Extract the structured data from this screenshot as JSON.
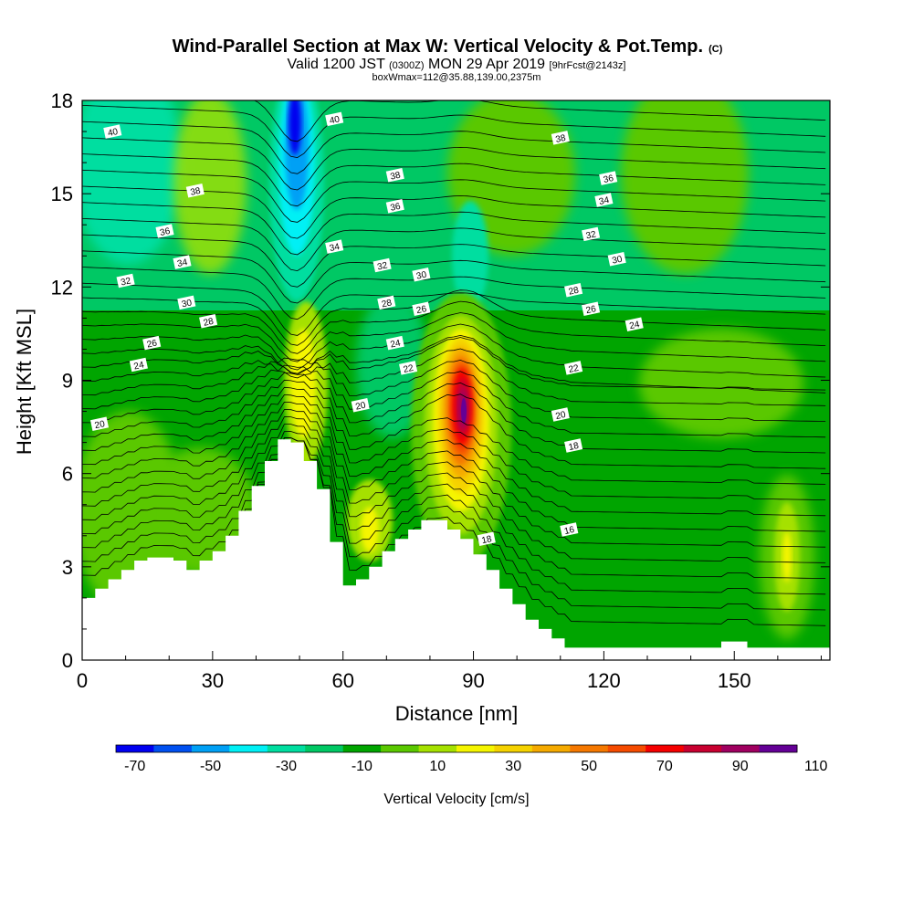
{
  "chart_data": {
    "type": "heatmap",
    "title": {
      "main": "Wind-Parallel Section at Max W: Vertical Velocity & Pot.Temp.",
      "mark": "(C)"
    },
    "subtitle": {
      "valid": "Valid 1200 JST",
      "zulu": "(0300Z)",
      "date": "MON 29 Apr 2019",
      "forecast": "[9hrFcst@2143z]"
    },
    "box_info": "boxWmax=112@35.88,139.00,2375m",
    "xlabel": "Distance [nm]",
    "ylabel": "Height [Kft MSL]",
    "xlim": [
      0,
      172
    ],
    "ylim": [
      0,
      18
    ],
    "x_ticks": [
      "0",
      "30",
      "60",
      "90",
      "120",
      "150"
    ],
    "y_ticks": [
      "0",
      "3",
      "6",
      "9",
      "12",
      "15",
      "18"
    ],
    "colorbar": {
      "label": "Vertical Velocity [cm/s]",
      "tick_labels": [
        "-70",
        "-50",
        "-30",
        "-10",
        "10",
        "30",
        "50",
        "70",
        "90",
        "110"
      ],
      "colors": [
        "#0000f0",
        "#0050f0",
        "#00a0f5",
        "#00f0f5",
        "#00dea0",
        "#00c864",
        "#00a500",
        "#5ac800",
        "#a5e100",
        "#f5f500",
        "#f5d200",
        "#f5aa00",
        "#f57800",
        "#f54b00",
        "#f50000",
        "#c80030",
        "#a00060",
        "#640096"
      ]
    },
    "terrain": {
      "x": [
        0,
        3,
        3,
        6,
        6,
        9,
        9,
        12,
        12,
        15,
        15,
        18,
        18,
        21,
        21,
        24,
        24,
        27,
        27,
        30,
        30,
        33,
        33,
        36,
        36,
        39,
        39,
        42,
        42,
        45,
        45,
        48,
        48,
        51,
        51,
        54,
        54,
        57,
        57,
        60,
        60,
        63,
        63,
        66,
        66,
        69,
        69,
        72,
        72,
        75,
        75,
        78,
        78,
        81,
        81,
        84,
        84,
        87,
        87,
        90,
        90,
        93,
        93,
        96,
        96,
        99,
        99,
        102,
        102,
        105,
        105,
        108,
        108,
        111,
        111,
        114,
        114,
        117,
        117,
        120,
        120,
        123,
        123,
        126,
        126,
        129,
        129,
        132,
        132,
        135,
        135,
        138,
        138,
        141,
        141,
        144,
        144,
        147,
        147,
        150,
        150,
        153,
        153,
        156,
        156,
        159,
        159,
        162,
        162,
        165,
        165,
        168,
        168,
        172
      ],
      "height": [
        2.0,
        2.0,
        2.3,
        2.3,
        2.6,
        2.6,
        2.9,
        2.9,
        3.2,
        3.2,
        3.3,
        3.3,
        3.3,
        3.3,
        3.2,
        3.2,
        2.9,
        2.9,
        3.2,
        3.2,
        3.5,
        3.5,
        4.0,
        4.0,
        4.8,
        4.8,
        5.6,
        5.6,
        6.4,
        6.4,
        7.1,
        7.1,
        7.0,
        7.0,
        6.4,
        6.4,
        5.5,
        5.5,
        3.8,
        3.8,
        2.4,
        2.4,
        2.6,
        2.6,
        3.0,
        3.0,
        3.5,
        3.5,
        3.9,
        3.9,
        4.2,
        4.2,
        4.5,
        4.5,
        4.5,
        4.5,
        4.2,
        4.2,
        3.9,
        3.9,
        3.4,
        3.4,
        2.9,
        2.9,
        2.3,
        2.3,
        1.8,
        1.8,
        1.3,
        1.3,
        1.0,
        1.0,
        0.7,
        0.7,
        0.4,
        0.4,
        0.4,
        0.4,
        0.4,
        0.4,
        0.4,
        0.4,
        0.4,
        0.4,
        0.4,
        0.4,
        0.4,
        0.4,
        0.4,
        0.4,
        0.4,
        0.4,
        0.4,
        0.4,
        0.4,
        0.4,
        0.4,
        0.4,
        0.6,
        0.6,
        0.6,
        0.6,
        0.4,
        0.4,
        0.4,
        0.4,
        0.4,
        0.4,
        0.4,
        0.4,
        0.4,
        0.4,
        0.4,
        0.4
      ]
    },
    "w_cells": [
      {
        "x": 3,
        "y": 9,
        "w": 15,
        "desc": "w",
        "value": 5
      },
      {
        "x": 49,
        "y": 16,
        "value": -70
      },
      {
        "x": 49,
        "y": 14,
        "value": -40
      },
      {
        "x": 49,
        "y": 12.5,
        "value": -20
      },
      {
        "x": 88,
        "y": 8,
        "value": 112
      },
      {
        "x": 50,
        "y": 9,
        "value": 35
      },
      {
        "x": 70,
        "y": 4.5,
        "value": 30
      },
      {
        "x": 163,
        "y": 3.5,
        "value": 30
      }
    ],
    "theta_labels": [
      {
        "value": "40",
        "x": 7,
        "y": 17
      },
      {
        "value": "40",
        "x": 58,
        "y": 17.4
      },
      {
        "value": "38",
        "x": 26,
        "y": 15.1
      },
      {
        "value": "38",
        "x": 72,
        "y": 15.6
      },
      {
        "value": "38",
        "x": 110,
        "y": 16.8
      },
      {
        "value": "36",
        "x": 19,
        "y": 13.8
      },
      {
        "value": "36",
        "x": 72,
        "y": 14.6
      },
      {
        "value": "36",
        "x": 121,
        "y": 15.5
      },
      {
        "value": "34",
        "x": 23,
        "y": 12.8
      },
      {
        "value": "34",
        "x": 58,
        "y": 13.3
      },
      {
        "value": "34",
        "x": 120,
        "y": 14.8
      },
      {
        "value": "32",
        "x": 10,
        "y": 12.2
      },
      {
        "value": "32",
        "x": 69,
        "y": 12.7
      },
      {
        "value": "32",
        "x": 117,
        "y": 13.7
      },
      {
        "value": "30",
        "x": 24,
        "y": 11.5
      },
      {
        "value": "30",
        "x": 78,
        "y": 12.4
      },
      {
        "value": "30",
        "x": 123,
        "y": 12.9
      },
      {
        "value": "28",
        "x": 29,
        "y": 10.9
      },
      {
        "value": "28",
        "x": 70,
        "y": 11.5
      },
      {
        "value": "28",
        "x": 113,
        "y": 11.9
      },
      {
        "value": "26",
        "x": 16,
        "y": 10.2
      },
      {
        "value": "26",
        "x": 78,
        "y": 11.3
      },
      {
        "value": "26",
        "x": 117,
        "y": 11.3
      },
      {
        "value": "24",
        "x": 13,
        "y": 9.5
      },
      {
        "value": "24",
        "x": 72,
        "y": 10.2
      },
      {
        "value": "24",
        "x": 127,
        "y": 10.8
      },
      {
        "value": "22",
        "x": 75,
        "y": 9.4
      },
      {
        "value": "22",
        "x": 113,
        "y": 9.4
      },
      {
        "value": "20",
        "x": 4,
        "y": 7.6
      },
      {
        "value": "20",
        "x": 64,
        "y": 8.2
      },
      {
        "value": "20",
        "x": 110,
        "y": 7.9
      },
      {
        "value": "18",
        "x": 113,
        "y": 6.9
      },
      {
        "value": "18",
        "x": 93,
        "y": 3.9
      },
      {
        "value": "16",
        "x": 112,
        "y": 4.2
      }
    ]
  }
}
